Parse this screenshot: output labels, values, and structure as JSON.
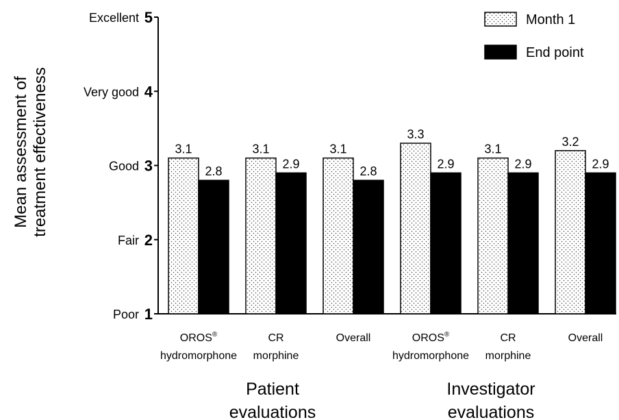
{
  "chart_data": {
    "type": "bar",
    "ylabel": [
      "Mean assessment of",
      "treatment effectiveness"
    ],
    "ylim": [
      1,
      5
    ],
    "yticks": [
      {
        "value": 1,
        "label": "Poor"
      },
      {
        "value": 2,
        "label": "Fair"
      },
      {
        "value": 3,
        "label": "Good"
      },
      {
        "value": 4,
        "label": "Very good"
      },
      {
        "value": 5,
        "label": "Excellent"
      }
    ],
    "categories": [
      {
        "line1": "OROS",
        "sup": "®",
        "line2": "hydromorphone"
      },
      {
        "line1": "CR",
        "sup": "",
        "line2": "morphine"
      },
      {
        "line1": "Overall",
        "sup": "",
        "line2": ""
      },
      {
        "line1": "OROS",
        "sup": "®",
        "line2": "hydromorphone"
      },
      {
        "line1": "CR",
        "sup": "",
        "line2": "morphine"
      },
      {
        "line1": "Overall",
        "sup": "",
        "line2": ""
      }
    ],
    "groups": [
      {
        "lines": [
          "Patient",
          "evaluations"
        ]
      },
      {
        "lines": [
          "Investigator",
          "evaluations"
        ]
      }
    ],
    "series": [
      {
        "name": "Month 1",
        "values": [
          3.1,
          3.1,
          3.1,
          3.3,
          3.1,
          3.2
        ],
        "labels": [
          "3.1",
          "3.1",
          "3.1",
          "3.3",
          "3.1",
          "3.2"
        ],
        "fill": "dotted"
      },
      {
        "name": "End point",
        "values": [
          2.8,
          2.9,
          2.8,
          2.9,
          2.9,
          2.9
        ],
        "labels": [
          "2.8",
          "2.9",
          "2.8",
          "2.9",
          "2.9",
          "2.9"
        ],
        "color": "#000000"
      }
    ],
    "legend_position": "top-right",
    "grid": false
  }
}
